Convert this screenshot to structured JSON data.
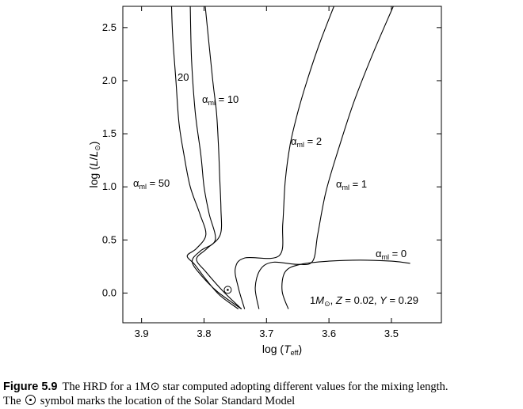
{
  "chart_data": {
    "type": "line",
    "xlabel": "log (T_eff)",
    "ylabel": "log (L/L_⊙)",
    "xlim": [
      3.93,
      3.42
    ],
    "ylim": [
      -0.28,
      2.7
    ],
    "x_reversed": true,
    "x_ticks": [
      3.9,
      3.8,
      3.7,
      3.6,
      3.5
    ],
    "x_tick_labels": [
      "3.9",
      "3.8",
      "3.7",
      "3.6",
      "3.5"
    ],
    "y_ticks": [
      0.0,
      0.5,
      1.0,
      1.5,
      2.0,
      2.5
    ],
    "y_tick_labels": [
      "0.0",
      "0.5",
      "1.0",
      "1.5",
      "2.0",
      "2.5"
    ],
    "grid": false,
    "series": [
      {
        "name": "α_ml = 50",
        "x": [
          3.745,
          3.775,
          3.797,
          3.815,
          3.827,
          3.812,
          3.797,
          3.807,
          3.822,
          3.832,
          3.84,
          3.845,
          3.85,
          3.852
        ],
        "y": [
          -0.15,
          -0.02,
          0.13,
          0.27,
          0.35,
          0.42,
          0.55,
          0.75,
          1.0,
          1.3,
          1.6,
          2.0,
          2.4,
          2.7
        ]
      },
      {
        "name": "20",
        "x": [
          3.74,
          3.778,
          3.805,
          3.819,
          3.805,
          3.782,
          3.792,
          3.8,
          3.805,
          3.814,
          3.82,
          3.822
        ],
        "y": [
          -0.15,
          0.01,
          0.17,
          0.3,
          0.4,
          0.5,
          0.75,
          1.0,
          1.3,
          1.7,
          2.2,
          2.7
        ]
      },
      {
        "name": "α_ml = 10",
        "x": [
          3.74,
          3.77,
          3.797,
          3.812,
          3.795,
          3.774,
          3.773,
          3.775,
          3.777,
          3.78,
          3.786,
          3.798
        ],
        "y": [
          -0.15,
          0.02,
          0.2,
          0.32,
          0.42,
          0.55,
          0.8,
          1.1,
          1.4,
          1.7,
          2.0,
          2.7
        ]
      },
      {
        "name": "α_ml = 2",
        "x": [
          3.735,
          3.745,
          3.75,
          3.735,
          3.68,
          3.674,
          3.67,
          3.662,
          3.65,
          3.635,
          3.615,
          3.592
        ],
        "y": [
          -0.15,
          0.05,
          0.23,
          0.33,
          0.35,
          0.65,
          1.05,
          1.4,
          1.7,
          2.0,
          2.35,
          2.7
        ]
      },
      {
        "name": "α_ml = 1",
        "x": [
          3.712,
          3.718,
          3.71,
          3.69,
          3.65,
          3.626,
          3.618,
          3.605,
          3.585,
          3.56,
          3.53,
          3.497
        ],
        "y": [
          -0.15,
          0.05,
          0.22,
          0.29,
          0.27,
          0.3,
          0.55,
          0.95,
          1.35,
          1.8,
          2.25,
          2.7
        ]
      },
      {
        "name": "α_ml = 0",
        "x": [
          3.665,
          3.675,
          3.67,
          3.646,
          3.6,
          3.55,
          3.5,
          3.47
        ],
        "y": [
          -0.15,
          0.02,
          0.2,
          0.27,
          0.3,
          0.31,
          0.3,
          0.28
        ]
      }
    ],
    "sun": {
      "x": 3.762,
      "y": 0.03
    },
    "annotation": "1M_⊙, Z = 0.02, Y = 0.29"
  },
  "caption": {
    "figure_label": "Figure 5.9",
    "line1": "The HRD for a 1M⊙ star computed adopting different values for the mixing length.",
    "line2_before": "The",
    "line2_after": "symbol marks the location of the Solar Standard Model"
  }
}
